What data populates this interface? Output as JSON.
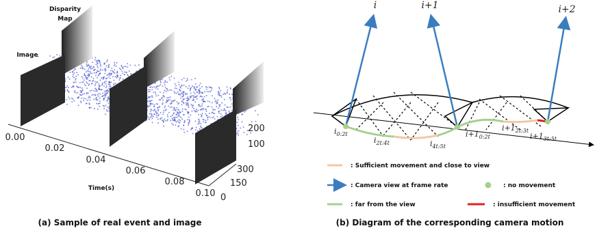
{
  "left": {
    "labels": {
      "disparity_map": [
        "Disparity",
        "Map"
      ],
      "image": "Image",
      "time_axis": "Time(s)"
    },
    "time_ticks": [
      "0.00",
      "0.02",
      "0.04",
      "0.06",
      "0.08",
      "0.10"
    ],
    "depth_ticks": [
      "300",
      "150",
      "0"
    ],
    "height_ticks": [
      "200",
      "100"
    ],
    "caption": "(a) Sample of  real event and image"
  },
  "right": {
    "frame_labels": [
      "i",
      "i+1",
      "i+2"
    ],
    "pose_labels": [
      {
        "base": "i",
        "sub": "0:2t"
      },
      {
        "base": "i",
        "sub": "2t:4t"
      },
      {
        "base": "i",
        "sub": "4t:5t"
      },
      {
        "base": "i+1",
        "sub": "0:2t"
      },
      {
        "base": "i+1",
        "sub": "2t:3t"
      },
      {
        "base": "i+1",
        "sub": "3t:5t"
      }
    ],
    "legend": {
      "sufficient": ": Sufficient movement and close to view",
      "camera_view": ": Camera view at frame rate",
      "no_movement": ": no movement",
      "far": ": far from the view",
      "insufficient": ": insufficient movement"
    },
    "caption": "(b) Diagram of the corresponding camera motion"
  }
}
